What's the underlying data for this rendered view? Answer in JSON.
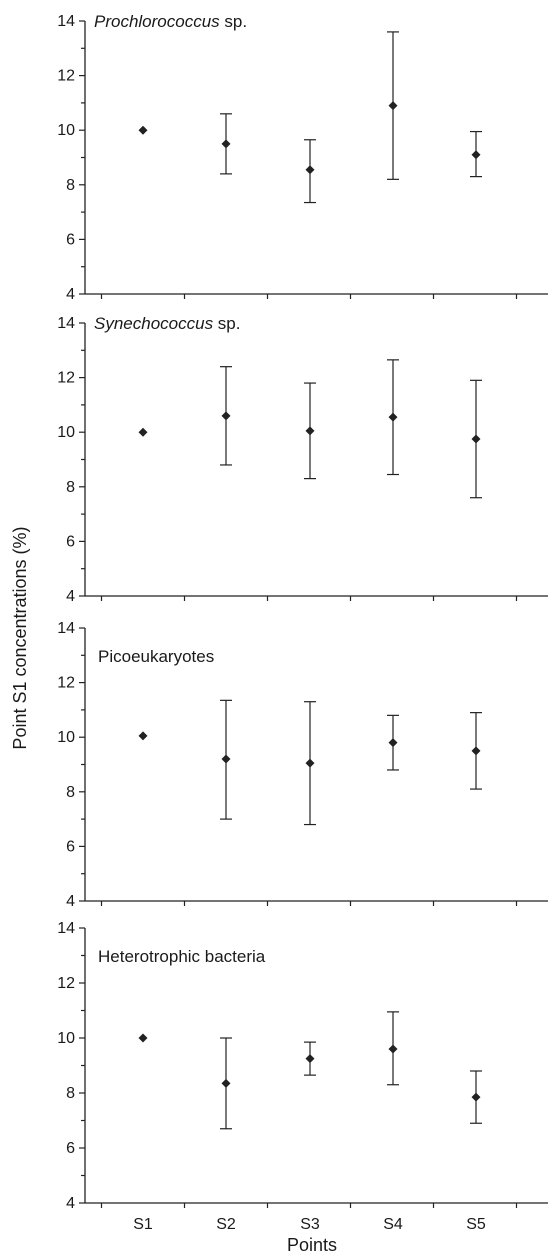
{
  "figure": {
    "ylabel": "Point S1 concentrations (%)",
    "xlabel": "Points"
  },
  "chart_data": [
    {
      "type": "scatter",
      "title_italic": "Prochlorococcus",
      "title_rest": " sp.",
      "categories": [
        "S1",
        "S2",
        "S3",
        "S4",
        "S5"
      ],
      "values": [
        10.0,
        9.5,
        8.55,
        10.9,
        9.1
      ],
      "err_low": [
        10.0,
        8.4,
        7.35,
        8.2,
        8.3
      ],
      "err_high": [
        10.0,
        10.6,
        9.65,
        13.6,
        9.95
      ],
      "ylim": [
        4,
        14
      ],
      "yticks": [
        "4",
        "6",
        "8",
        "10",
        "12",
        "14"
      ],
      "grid": false
    },
    {
      "type": "scatter",
      "title_italic": "Synechococcus",
      "title_rest": " sp.",
      "categories": [
        "S1",
        "S2",
        "S3",
        "S4",
        "S5"
      ],
      "values": [
        10.0,
        10.6,
        10.05,
        10.55,
        9.75
      ],
      "err_low": [
        10.0,
        8.8,
        8.3,
        8.45,
        7.6
      ],
      "err_high": [
        10.0,
        12.4,
        11.8,
        12.65,
        11.9
      ],
      "ylim": [
        4,
        14
      ],
      "yticks": [
        "4",
        "6",
        "8",
        "10",
        "12",
        "14"
      ],
      "grid": false
    },
    {
      "type": "scatter",
      "title_italic": "",
      "title_rest": "Picoeukaryotes",
      "categories": [
        "S1",
        "S2",
        "S3",
        "S4",
        "S5"
      ],
      "values": [
        10.05,
        9.2,
        9.05,
        9.8,
        9.5
      ],
      "err_low": [
        10.05,
        7.0,
        6.8,
        8.8,
        8.1
      ],
      "err_high": [
        10.05,
        11.35,
        11.3,
        10.8,
        10.9
      ],
      "ylim": [
        4,
        14
      ],
      "yticks": [
        "4",
        "6",
        "8",
        "10",
        "12",
        "14"
      ],
      "grid": false
    },
    {
      "type": "scatter",
      "title_italic": "",
      "title_rest": "Heterotrophic bacteria",
      "categories": [
        "S1",
        "S2",
        "S3",
        "S4",
        "S5"
      ],
      "values": [
        10.0,
        8.35,
        9.25,
        9.6,
        7.85
      ],
      "err_low": [
        10.0,
        6.7,
        8.65,
        8.3,
        6.9
      ],
      "err_high": [
        10.0,
        10.0,
        9.85,
        10.95,
        8.8
      ],
      "ylim": [
        4,
        14
      ],
      "yticks": [
        "4",
        "6",
        "8",
        "10",
        "12",
        "14"
      ],
      "grid": false
    }
  ]
}
